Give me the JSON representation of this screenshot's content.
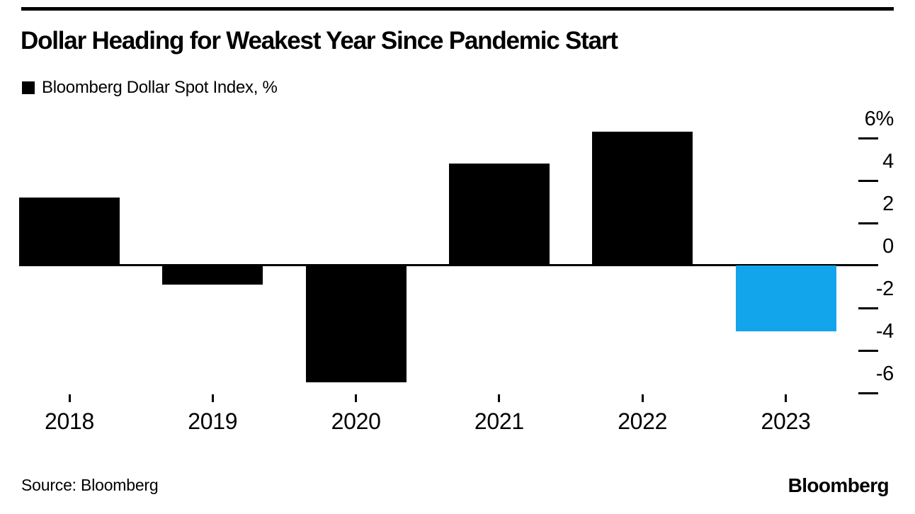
{
  "header": {
    "title": "Dollar Heading for Weakest Year Since Pandemic Start"
  },
  "legend": {
    "label": "Bloomberg Dollar Spot Index, %",
    "swatch_color": "#000000"
  },
  "chart_data": {
    "type": "bar",
    "title": "Dollar Heading for Weakest Year Since Pandemic Start",
    "categories": [
      "2018",
      "2019",
      "2020",
      "2021",
      "2022",
      "2023"
    ],
    "values": [
      3.2,
      -0.9,
      -5.5,
      4.8,
      6.3,
      -3.1
    ],
    "bar_colors": [
      "#000000",
      "#000000",
      "#000000",
      "#000000",
      "#000000",
      "#12a5ec"
    ],
    "series_name": "Bloomberg Dollar Spot Index, %",
    "unit": "%",
    "ylim": [
      -7,
      6.5
    ],
    "yticks": [
      6,
      4,
      2,
      0,
      -2,
      -4,
      -6
    ],
    "ytick_labels": [
      "6%",
      "4",
      "2",
      "0",
      "-2",
      "-4",
      "-6"
    ],
    "xlabel": "",
    "ylabel": "%",
    "grid": false,
    "legend_position": "top-left",
    "axis_side": "right",
    "default_bar_color": "#000000",
    "highlight_color": "#12a5ec"
  },
  "footer": {
    "source": "Source: Bloomberg",
    "logo": "Bloomberg"
  }
}
